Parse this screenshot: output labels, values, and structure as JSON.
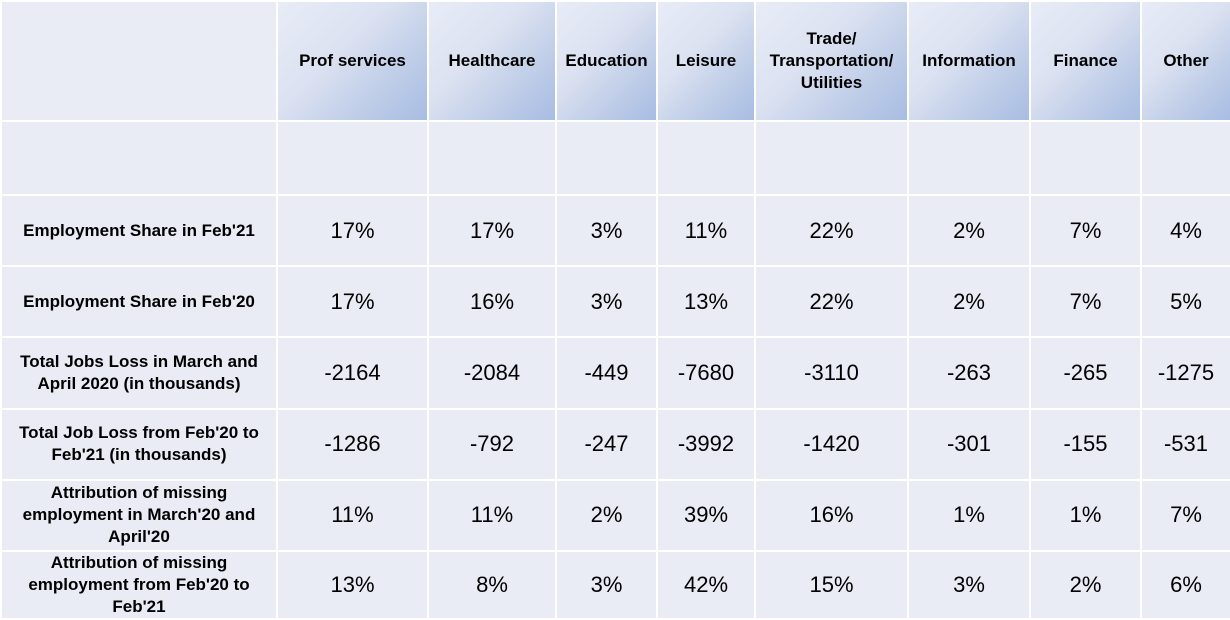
{
  "table": {
    "columns": [
      "Prof services",
      "Healthcare",
      "Education",
      "Leisure",
      "Trade/ Transportation/ Utilities",
      "Information",
      "Finance",
      "Other"
    ],
    "rows": [
      {
        "label": "Employment Share in Feb'21",
        "values": [
          "17%",
          "17%",
          "3%",
          "11%",
          "22%",
          "2%",
          "7%",
          "4%"
        ]
      },
      {
        "label": "Employment Share in Feb'20",
        "values": [
          "17%",
          "16%",
          "3%",
          "13%",
          "22%",
          "2%",
          "7%",
          "5%"
        ]
      },
      {
        "label": "Total Jobs Loss in March and April 2020 (in thousands)",
        "values": [
          "-2164",
          "-2084",
          "-449",
          "-7680",
          "-3110",
          "-263",
          "-265",
          "-1275"
        ]
      },
      {
        "label": "Total Job Loss from Feb'20 to Feb'21 (in thousands)",
        "values": [
          "-1286",
          "-792",
          "-247",
          "-3992",
          "-1420",
          "-301",
          "-155",
          "-531"
        ]
      },
      {
        "label": "Attribution of missing employment in March'20 and April'20",
        "values": [
          "11%",
          "11%",
          "2%",
          "39%",
          "16%",
          "1%",
          "1%",
          "7%"
        ]
      },
      {
        "label": "Attribution of missing employment from Feb'20 to Feb'21",
        "values": [
          "13%",
          "8%",
          "3%",
          "42%",
          "15%",
          "3%",
          "2%",
          "6%"
        ]
      }
    ]
  },
  "colors": {
    "cell_background": "#e9ebf5",
    "header_gradient_light": "#e8ecf7",
    "header_gradient_dark": "#a8bde3",
    "grid_lines": "#ffffff",
    "text": "#000000"
  },
  "chart_data": {
    "type": "table",
    "columns": [
      "Prof services",
      "Healthcare",
      "Education",
      "Leisure",
      "Trade/ Transportation/ Utilities",
      "Information",
      "Finance",
      "Other"
    ],
    "rows": [
      {
        "label": "Employment Share in Feb'21",
        "values": [
          "17%",
          "17%",
          "3%",
          "11%",
          "22%",
          "2%",
          "7%",
          "4%"
        ]
      },
      {
        "label": "Employment Share in Feb'20",
        "values": [
          "17%",
          "16%",
          "3%",
          "13%",
          "22%",
          "2%",
          "7%",
          "5%"
        ]
      },
      {
        "label": "Total Jobs Loss in March and April 2020 (in thousands)",
        "values": [
          -2164,
          -2084,
          -449,
          -7680,
          -3110,
          -263,
          -265,
          -1275
        ]
      },
      {
        "label": "Total Job Loss from Feb'20 to Feb'21 (in thousands)",
        "values": [
          -1286,
          -792,
          -247,
          -3992,
          -1420,
          -301,
          -155,
          -531
        ]
      },
      {
        "label": "Attribution of missing employment in March'20 and April'20",
        "values": [
          "11%",
          "11%",
          "2%",
          "39%",
          "16%",
          "1%",
          "1%",
          "7%"
        ]
      },
      {
        "label": "Attribution of missing employment from Feb'20 to Feb'21",
        "values": [
          "13%",
          "8%",
          "3%",
          "42%",
          "15%",
          "3%",
          "2%",
          "6%"
        ]
      }
    ]
  }
}
